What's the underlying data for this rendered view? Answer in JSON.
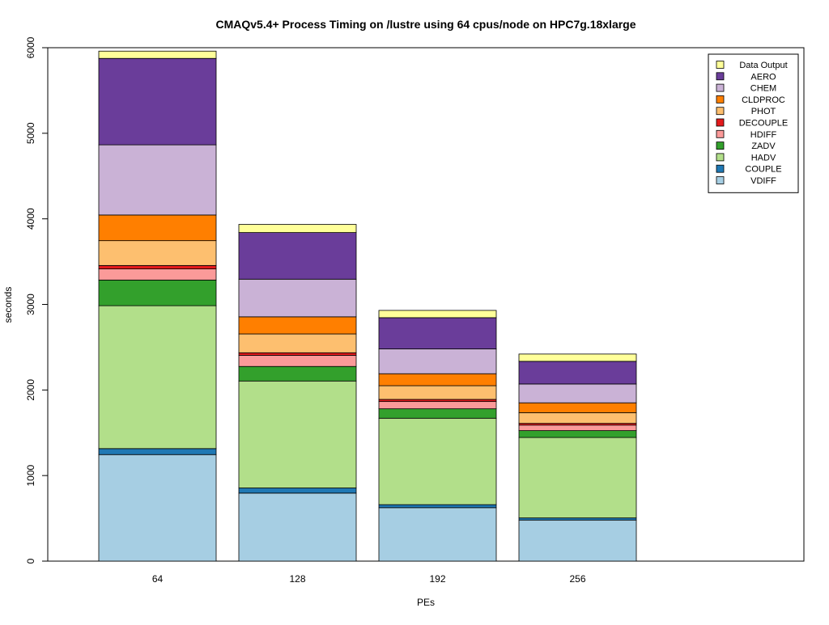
{
  "chart_data": {
    "type": "bar",
    "stacked": true,
    "title": "CMAQv5.4+ Process Timing on /lustre using 64 cpus/node on HPC7g.18xlarge",
    "xlabel": "PEs",
    "ylabel": "seconds",
    "ylim": [
      0,
      6000
    ],
    "yticks": [
      0,
      1000,
      2000,
      3000,
      4000,
      5000,
      6000
    ],
    "categories": [
      "64",
      "128",
      "192",
      "256"
    ],
    "grid": false,
    "legend_position": "top-right",
    "series": [
      {
        "name": "VDIFF",
        "color": "#a6cee3",
        "values": [
          1245,
          795,
          625,
          480
        ]
      },
      {
        "name": "COUPLE",
        "color": "#1f78b4",
        "values": [
          70,
          60,
          35,
          25
        ]
      },
      {
        "name": "HADV",
        "color": "#b2df8a",
        "values": [
          1670,
          1250,
          1010,
          940
        ]
      },
      {
        "name": "ZADV",
        "color": "#33a02c",
        "values": [
          300,
          170,
          110,
          80
        ]
      },
      {
        "name": "HDIFF",
        "color": "#fb9a99",
        "values": [
          130,
          130,
          85,
          65
        ]
      },
      {
        "name": "DECOUPLE",
        "color": "#e31a1c",
        "values": [
          40,
          30,
          25,
          20
        ]
      },
      {
        "name": "PHOT",
        "color": "#fdbf6f",
        "values": [
          290,
          220,
          160,
          125
        ]
      },
      {
        "name": "CLDPROC",
        "color": "#ff7f00",
        "values": [
          300,
          200,
          140,
          115
        ]
      },
      {
        "name": "CHEM",
        "color": "#cab2d6",
        "values": [
          820,
          440,
          290,
          220
        ]
      },
      {
        "name": "AERO",
        "color": "#6a3d9a",
        "values": [
          1010,
          545,
          365,
          265
        ]
      },
      {
        "name": "Data Output",
        "color": "#ffff99",
        "values": [
          85,
          95,
          85,
          85
        ]
      }
    ]
  }
}
